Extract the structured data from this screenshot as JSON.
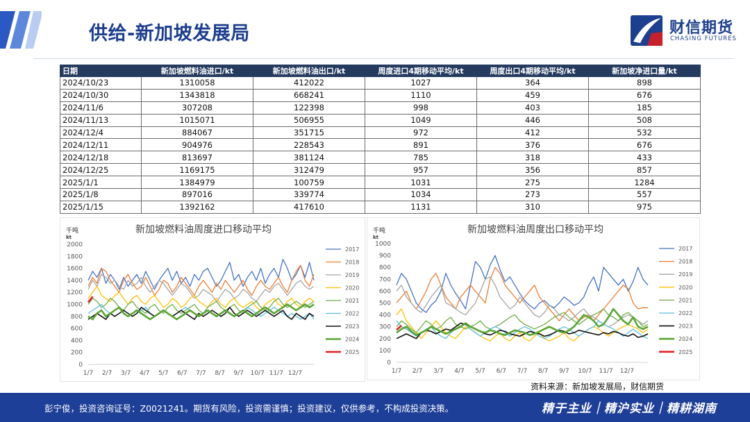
{
  "header": {
    "title": "供给-新加坡发展局",
    "logo_cn": "财信期货",
    "logo_en": "CHASING FUTURES"
  },
  "table": {
    "columns": [
      "日期",
      "新加坡燃料油进口/kt",
      "新加坡燃料油出口/kt",
      "周度进口4期移动平均/kt",
      "周度出口4期移动平均/kt",
      "新加坡净进口量/kt"
    ],
    "rows": [
      [
        "2024/10/23",
        "1310058",
        "412022",
        "1027",
        "364",
        "898"
      ],
      [
        "2024/10/30",
        "1343818",
        "668241",
        "1110",
        "459",
        "676"
      ],
      [
        "2024/11/6",
        "307208",
        "122398",
        "998",
        "403",
        "185"
      ],
      [
        "2024/11/13",
        "1015071",
        "506955",
        "1049",
        "446",
        "508"
      ],
      [
        "2024/12/4",
        "884067",
        "351715",
        "972",
        "412",
        "532"
      ],
      [
        "2024/12/11",
        "904976",
        "228543",
        "891",
        "376",
        "676"
      ],
      [
        "2024/12/18",
        "813697",
        "381124",
        "785",
        "318",
        "433"
      ],
      [
        "2024/12/25",
        "1169175",
        "312479",
        "957",
        "356",
        "857"
      ],
      [
        "2025/1/1",
        "1384979",
        "100759",
        "1031",
        "275",
        "1284"
      ],
      [
        "2025/1/8",
        "897016",
        "339774",
        "1034",
        "273",
        "557"
      ],
      [
        "2025/1/15",
        "1392162",
        "417610",
        "1131",
        "310",
        "975"
      ]
    ]
  },
  "chart_data": [
    {
      "type": "line",
      "title": "新加坡燃料油周度进口移动平均",
      "unit_cn": "千吨",
      "unit_en": "kt",
      "ylim": [
        0,
        2000
      ],
      "yticks": [
        "0",
        "200",
        "400",
        "600",
        "800",
        "1000",
        "1200",
        "1400",
        "1600",
        "1800",
        "2000"
      ],
      "xticks": [
        "1/7",
        "2/7",
        "3/7",
        "4/7",
        "5/7",
        "6/7",
        "7/7",
        "8/7",
        "9/7",
        "10/7",
        "11/7",
        "12/7"
      ],
      "series": [
        {
          "name": "2017",
          "color": "#4472c4",
          "width": 1.3,
          "values": [
            1400,
            1550,
            1450,
            1600,
            1350,
            1500,
            1400,
            1250,
            1450,
            1300,
            1400,
            1500,
            1350,
            1550,
            1400,
            1250,
            1400,
            1500,
            1600,
            1400,
            1550,
            1350,
            1450,
            1300,
            1500,
            1400,
            1550,
            1600,
            1450,
            1300,
            1400,
            1550,
            1700,
            1400,
            1500,
            1300,
            1450,
            1550,
            1400,
            1600,
            1350,
            1500,
            1600,
            1450,
            1750,
            1600,
            1400,
            1500,
            1650,
            1450,
            1700,
            1400
          ]
        },
        {
          "name": "2018",
          "color": "#ed7d31",
          "width": 1.3,
          "values": [
            1300,
            1450,
            1350,
            1600,
            1550,
            1400,
            1300,
            1200,
            1400,
            1500,
            1350,
            1250,
            1300,
            1450,
            1300,
            1150,
            1250,
            1400,
            1350,
            1200,
            1300,
            1450,
            1350,
            1250,
            1150,
            1300,
            1400,
            1300,
            1200,
            1350,
            1250,
            1400,
            1300,
            1200,
            1300,
            1400,
            1250,
            1150,
            1300,
            1400,
            1300,
            1250,
            1350,
            1450,
            1300,
            1200,
            1400,
            1550,
            1650,
            1400,
            1300,
            1500
          ]
        },
        {
          "name": "2019",
          "color": "#a5a5a5",
          "width": 1.3,
          "values": [
            1250,
            1400,
            1300,
            1500,
            1450,
            1350,
            1400,
            1300,
            1250,
            1400,
            1300,
            1350,
            1450,
            1300,
            1200,
            1300,
            1400,
            1350,
            1250,
            1150,
            1250,
            1350,
            1300,
            1200,
            1100,
            1150,
            1250,
            1200,
            1150,
            1050,
            1150,
            1250,
            1200,
            1100,
            1150,
            1250,
            1200,
            1100,
            1050,
            1150,
            1250,
            1200,
            1300,
            1350,
            1250,
            1150,
            1250,
            1350,
            1400,
            1300,
            1250,
            1300
          ]
        },
        {
          "name": "2020",
          "color": "#ffc000",
          "width": 1.3,
          "values": [
            1100,
            1200,
            1300,
            1150,
            1100,
            1050,
            1150,
            1200,
            1100,
            1000,
            1100,
            1150,
            1050,
            1000,
            1100,
            1150,
            1050,
            950,
            1000,
            1100,
            1050,
            950,
            1000,
            1100,
            1150,
            1050,
            1000,
            950,
            1050,
            1100,
            1000,
            950,
            1050,
            1100,
            1000,
            950,
            1000,
            1050,
            950,
            900,
            1000,
            1050,
            1100,
            1000,
            950,
            1050,
            1100,
            1000,
            950,
            1050,
            1100,
            1050
          ]
        },
        {
          "name": "2021",
          "color": "#70ad47",
          "width": 1.3,
          "values": [
            1000,
            1100,
            1050,
            950,
            1000,
            1100,
            1050,
            950,
            900,
            1000,
            1050,
            950,
            900,
            850,
            950,
            1000,
            900,
            850,
            950,
            1000,
            900,
            850,
            900,
            950,
            1000,
            900,
            850,
            950,
            1000,
            1050,
            950,
            900,
            950,
            1000,
            900,
            850,
            950,
            1000,
            1050,
            950,
            900,
            950,
            1050,
            1100,
            1000,
            950,
            1000,
            1050,
            1000,
            950,
            1000,
            1050
          ]
        },
        {
          "name": "2022",
          "color": "#5bc0de",
          "width": 1.3,
          "values": [
            850,
            900,
            950,
            1000,
            900,
            850,
            800,
            850,
            900,
            850,
            800,
            850,
            900,
            950,
            850,
            800,
            850,
            900,
            850,
            800,
            850,
            900,
            950,
            900,
            850,
            800,
            850,
            900,
            850,
            800,
            850,
            900,
            850,
            800,
            850,
            900,
            950,
            900,
            850,
            800,
            850,
            900,
            950,
            900,
            850,
            800,
            850,
            800,
            750,
            800,
            850,
            750
          ]
        },
        {
          "name": "2023",
          "color": "#111111",
          "width": 1.6,
          "values": [
            750,
            800,
            850,
            800,
            750,
            850,
            800,
            850,
            900,
            850,
            800,
            850,
            950,
            900,
            850,
            800,
            850,
            900,
            850,
            800,
            850,
            900,
            850,
            800,
            750,
            850,
            800,
            850,
            900,
            850,
            800,
            850,
            950,
            850,
            800,
            850,
            900,
            850,
            800,
            850,
            900,
            850,
            800,
            850,
            900,
            800,
            750,
            850,
            800,
            750,
            850,
            800
          ]
        },
        {
          "name": "2024",
          "color": "#5aa532",
          "width": 2.6,
          "values": [
            800,
            750,
            850,
            900,
            800,
            850,
            900,
            950,
            850,
            800,
            850,
            900,
            850,
            800,
            750,
            800,
            850,
            900,
            850,
            800,
            750,
            800,
            850,
            900,
            850,
            800,
            850,
            900,
            850,
            800,
            850,
            900,
            850,
            800,
            850,
            900,
            850,
            800,
            850,
            900,
            950,
            900,
            850,
            900,
            950,
            1000,
            950,
            900,
            950,
            1000,
            950,
            1000
          ]
        },
        {
          "name": "2025",
          "color": "#e02020",
          "width": 2.6,
          "values": [
            1034,
            1131
          ]
        }
      ]
    },
    {
      "type": "line",
      "title": "新加坡燃料油周度出口移动平均",
      "unit_cn": "千吨",
      "unit_en": "kt",
      "ylim": [
        0,
        1000
      ],
      "yticks": [
        "0",
        "100",
        "200",
        "300",
        "400",
        "500",
        "600",
        "700",
        "800",
        "900",
        "1000"
      ],
      "xticks": [
        "1/7",
        "2/7",
        "3/7",
        "4/7",
        "5/7",
        "6/7",
        "7/7",
        "8/7",
        "9/7",
        "10/7",
        "11/7",
        "12/7"
      ],
      "series": [
        {
          "name": "2017",
          "color": "#4472c4",
          "width": 1.3,
          "values": [
            650,
            750,
            700,
            600,
            500,
            450,
            420,
            480,
            520,
            600,
            750,
            650,
            580,
            520,
            450,
            650,
            850,
            800,
            700,
            820,
            900,
            780,
            680,
            720,
            650,
            580,
            520,
            480,
            450,
            500,
            520,
            480,
            460,
            500,
            550,
            520,
            480,
            500,
            550,
            650,
            720,
            600,
            800,
            750,
            700,
            650,
            700,
            600,
            680,
            800,
            700,
            650
          ]
        },
        {
          "name": "2018",
          "color": "#ed7d31",
          "width": 1.3,
          "values": [
            500,
            550,
            600,
            500,
            450,
            520,
            600,
            700,
            750,
            650,
            550,
            500,
            450,
            550,
            600,
            650,
            600,
            550,
            500,
            700,
            800,
            750,
            650,
            600,
            550,
            500,
            550,
            600,
            650,
            550,
            500,
            450,
            400,
            350,
            400,
            450,
            400,
            350,
            380,
            400,
            350,
            400,
            450,
            500,
            550,
            600,
            650,
            620,
            500,
            450,
            460,
            460
          ]
        },
        {
          "name": "2019",
          "color": "#a5a5a5",
          "width": 1.3,
          "values": [
            600,
            650,
            550,
            500,
            450,
            420,
            480,
            550,
            600,
            650,
            500,
            480,
            450,
            420,
            400,
            450,
            500,
            600,
            700,
            720,
            650,
            550,
            500,
            450,
            480,
            550,
            500,
            450,
            400,
            380,
            420,
            480,
            450,
            400,
            380,
            350,
            380,
            420,
            450,
            400,
            380,
            350,
            320,
            300,
            320,
            350,
            380,
            400,
            380,
            350,
            320,
            350
          ]
        },
        {
          "name": "2020",
          "color": "#ffc000",
          "width": 1.3,
          "values": [
            400,
            450,
            350,
            300,
            250,
            200,
            250,
            300,
            350,
            300,
            250,
            220,
            200,
            250,
            300,
            280,
            250,
            220,
            200,
            180,
            220,
            250,
            200,
            180,
            220,
            250,
            200,
            180,
            220,
            250,
            200,
            180,
            200,
            220,
            250,
            200,
            180,
            220,
            250,
            280,
            300,
            280,
            250,
            220,
            250,
            280,
            300,
            320,
            300,
            280,
            250,
            280
          ]
        },
        {
          "name": "2021",
          "color": "#70ad47",
          "width": 1.3,
          "values": [
            300,
            350,
            320,
            280,
            250,
            300,
            350,
            320,
            280,
            300,
            350,
            380,
            320,
            300,
            280,
            300,
            320,
            350,
            300,
            280,
            300,
            320,
            350,
            380,
            400,
            350,
            320,
            300,
            280,
            300,
            320,
            350,
            380,
            400,
            420,
            380,
            350,
            320,
            350,
            380,
            400,
            420,
            450,
            400,
            380,
            350,
            400,
            420,
            380,
            350,
            300,
            320
          ]
        },
        {
          "name": "2022",
          "color": "#5bc0de",
          "width": 1.3,
          "values": [
            350,
            300,
            280,
            250,
            220,
            250,
            280,
            300,
            250,
            220,
            200,
            250,
            280,
            300,
            320,
            280,
            250,
            220,
            250,
            280,
            300,
            280,
            250,
            220,
            250,
            280,
            300,
            280,
            250,
            220,
            200,
            220,
            250,
            280,
            300,
            280,
            250,
            220,
            250,
            280,
            300,
            350,
            320,
            300,
            280,
            250,
            220,
            250,
            280,
            250,
            220,
            200
          ]
        },
        {
          "name": "2023",
          "color": "#111111",
          "width": 1.6,
          "values": [
            200,
            220,
            240,
            220,
            200,
            250,
            270,
            260,
            240,
            260,
            280,
            270,
            300,
            330,
            320,
            300,
            280,
            260,
            240,
            230,
            250,
            270,
            260,
            240,
            230,
            220,
            240,
            260,
            250,
            240,
            220,
            230,
            250,
            270,
            260,
            240,
            250,
            270,
            260,
            250,
            240,
            230,
            250,
            240,
            260,
            250,
            230,
            220,
            240,
            210,
            220,
            240
          ]
        },
        {
          "name": "2024",
          "color": "#5aa532",
          "width": 2.6,
          "values": [
            250,
            280,
            300,
            260,
            230,
            250,
            270,
            300,
            280,
            260,
            240,
            260,
            280,
            300,
            330,
            300,
            280,
            260,
            250,
            270,
            260,
            240,
            230,
            250,
            270,
            260,
            250,
            230,
            240,
            260,
            280,
            300,
            280,
            260,
            250,
            270,
            300,
            350,
            400,
            380,
            350,
            300,
            320,
            380,
            450,
            400,
            350,
            320,
            380,
            300,
            280,
            300
          ]
        },
        {
          "name": "2025",
          "color": "#e02020",
          "width": 2.6,
          "values": [
            273,
            310
          ]
        }
      ]
    }
  ],
  "source": "资料来源：新加坡发展局，财信期货",
  "footer": {
    "disclaimer": "彭宁俊，投资咨询证号：Z0021241。期货有风险，投资需谨慎；投资建议，仅供参考，不构成投资决策。",
    "slogan": "精于主业｜精沪实业｜精耕湖南"
  }
}
